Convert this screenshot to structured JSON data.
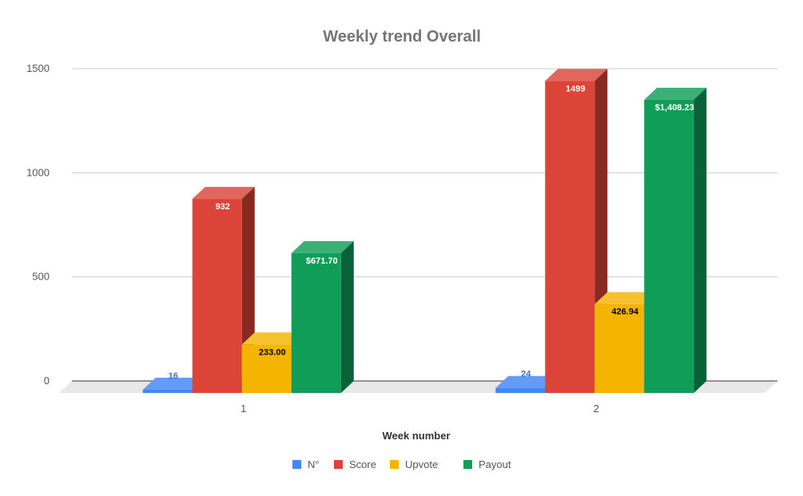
{
  "chart_data": {
    "type": "bar",
    "title": "Weekly trend Overall",
    "xlabel": "Week number",
    "ylabel": "",
    "categories": [
      "1",
      "2"
    ],
    "ylim": [
      0,
      1500
    ],
    "yticks": [
      0,
      500,
      1000,
      1500
    ],
    "grid": true,
    "legend_position": "bottom",
    "style": "3d",
    "series": [
      {
        "name": "N°",
        "color": "#4285f4",
        "label_color": "#3a6fd0",
        "values": [
          16,
          24
        ],
        "labels": [
          "16",
          "24"
        ]
      },
      {
        "name": "Score",
        "color": "#db4437",
        "label_color": "#ffffff",
        "values": [
          932,
          1499
        ],
        "labels": [
          "932",
          "1499"
        ]
      },
      {
        "name": "Upvote",
        "color": "#f4b400",
        "label_color": "#000000",
        "values": [
          233.0,
          426.94
        ],
        "labels": [
          "233.00",
          "426.94"
        ]
      },
      {
        "name": "Payout",
        "color": "#0f9d58",
        "label_color": "#ffffff",
        "values": [
          671.7,
          1408.23
        ],
        "labels": [
          "$671.70",
          "$1,408.23"
        ]
      }
    ]
  }
}
